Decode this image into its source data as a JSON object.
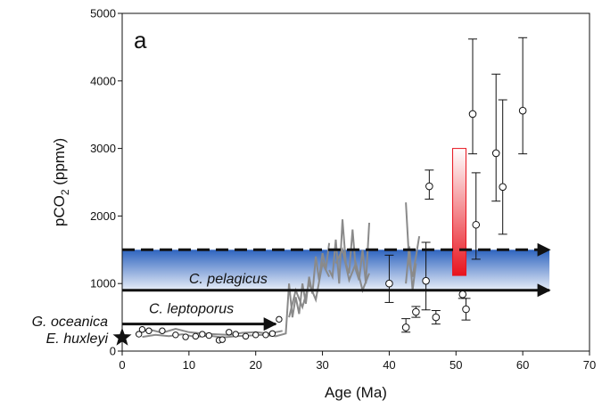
{
  "chart_data": {
    "type": "scatter",
    "panel_letter": "a",
    "xlabel": "Age (Ma)",
    "ylabel_main": "pCO",
    "ylabel_sub": "2",
    "ylabel_tail": " (ppmv)",
    "xlim": [
      0,
      70
    ],
    "ylim": [
      0,
      5000
    ],
    "xticks": [
      0,
      10,
      20,
      30,
      40,
      50,
      60,
      70
    ],
    "yticks": [
      0,
      1000,
      2000,
      3000,
      4000,
      5000
    ],
    "grid": false,
    "band": {
      "y0": 900,
      "y1": 1500,
      "x0": 0,
      "x1": 64
    },
    "arrows": [
      {
        "label": "C. pelagicus",
        "y": 900,
        "x0": 0,
        "x1": 64,
        "dashed": false
      },
      {
        "label": "",
        "y": 1500,
        "x0": 0,
        "x1": 64,
        "dashed": true
      },
      {
        "label": "C. leptoporus",
        "y": 400,
        "x0": 0,
        "x1": 23,
        "dashed": false
      }
    ],
    "species_labels": [
      "G. oceanica",
      "E. huxleyi"
    ],
    "star_point": {
      "x": 0,
      "y": 200
    },
    "rect": {
      "x0": 49.5,
      "x1": 51.5,
      "y0": 1120,
      "y1": 3000
    },
    "points_with_error": [
      {
        "x": 40,
        "y": 1000,
        "lo": 720,
        "hi": 1420
      },
      {
        "x": 42.5,
        "y": 350,
        "lo": 280,
        "hi": 480
      },
      {
        "x": 44,
        "y": 580,
        "lo": 500,
        "hi": 660
      },
      {
        "x": 45.5,
        "y": 1040,
        "lo": 610,
        "hi": 1610
      },
      {
        "x": 46,
        "y": 2440,
        "lo": 2250,
        "hi": 2680
      },
      {
        "x": 47,
        "y": 500,
        "lo": 400,
        "hi": 600
      },
      {
        "x": 51,
        "y": 840,
        "lo": 780,
        "hi": 900
      },
      {
        "x": 51.5,
        "y": 620,
        "lo": 460,
        "hi": 780
      },
      {
        "x": 52.5,
        "y": 3510,
        "lo": 2920,
        "hi": 4620
      },
      {
        "x": 53,
        "y": 1870,
        "lo": 1360,
        "hi": 2640
      },
      {
        "x": 56,
        "y": 2930,
        "lo": 2220,
        "hi": 4100
      },
      {
        "x": 57,
        "y": 2430,
        "lo": 1730,
        "hi": 3720
      },
      {
        "x": 60,
        "y": 3560,
        "lo": 2920,
        "hi": 4640
      }
    ],
    "low_points": [
      {
        "x": 2.5,
        "y": 250
      },
      {
        "x": 3,
        "y": 320
      },
      {
        "x": 4,
        "y": 300
      },
      {
        "x": 6,
        "y": 300
      },
      {
        "x": 8,
        "y": 240
      },
      {
        "x": 9.5,
        "y": 210
      },
      {
        "x": 11,
        "y": 220
      },
      {
        "x": 12,
        "y": 250
      },
      {
        "x": 13,
        "y": 230
      },
      {
        "x": 14.5,
        "y": 160
      },
      {
        "x": 15,
        "y": 170
      },
      {
        "x": 16,
        "y": 280
      },
      {
        "x": 17,
        "y": 250
      },
      {
        "x": 18.5,
        "y": 220
      },
      {
        "x": 20,
        "y": 240
      },
      {
        "x": 21.5,
        "y": 240
      },
      {
        "x": 22.5,
        "y": 260
      },
      {
        "x": 23.5,
        "y": 470
      }
    ],
    "gray_series": [
      {
        "x": [
          2,
          4,
          6,
          8,
          10,
          12,
          14,
          16,
          18,
          20,
          22,
          24
        ],
        "y": [
          250,
          320,
          270,
          330,
          280,
          260,
          250,
          240,
          270,
          280,
          260,
          300
        ]
      },
      {
        "x": [
          3,
          5,
          7,
          9,
          11,
          13,
          15,
          17,
          19,
          21,
          23,
          24.5
        ],
        "y": [
          210,
          240,
          220,
          250,
          210,
          230,
          200,
          220,
          230,
          240,
          220,
          260
        ]
      },
      {
        "x": [
          24.5,
          25,
          25.5,
          26,
          26.5,
          27,
          27.5,
          28,
          28.5,
          29,
          29.5,
          30,
          30.5,
          31
        ],
        "y": [
          250,
          1000,
          500,
          800,
          550,
          1000,
          700,
          1100,
          850,
          1400,
          1050,
          1450,
          1200,
          1600
        ]
      },
      {
        "x": [
          25,
          26,
          27,
          28,
          29,
          30,
          31
        ],
        "y": [
          500,
          900,
          650,
          1000,
          760,
          1300,
          1100
        ]
      },
      {
        "x": [
          31,
          31.5,
          32,
          32.5,
          33,
          33.5,
          34,
          34.5,
          35,
          35.5,
          36,
          36.5,
          37
        ],
        "y": [
          1200,
          1100,
          1650,
          1000,
          1950,
          1300,
          1150,
          1800,
          1200,
          1050,
          1500,
          1000,
          1900
        ]
      },
      {
        "x": [
          32,
          33,
          34,
          35,
          36,
          37
        ],
        "y": [
          1300,
          1500,
          1050,
          1300,
          900,
          1150
        ]
      },
      {
        "x": [
          42.5,
          43,
          43.5,
          44,
          44.5
        ],
        "y": [
          2200,
          1300,
          1100,
          1400,
          1700
        ]
      },
      {
        "x": [
          42.5,
          43,
          43.5,
          44
        ],
        "y": [
          1000,
          1550,
          900,
          1300
        ]
      }
    ]
  }
}
